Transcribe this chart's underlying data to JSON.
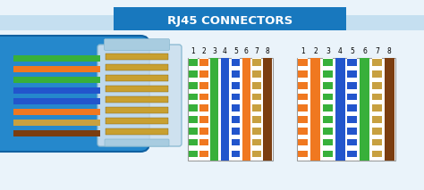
{
  "title": "RJ45 CONNECTORS",
  "title_bg": "#1878be",
  "title_color": "#ffffff",
  "bg_color": "#eaf3fa",
  "bg_stripe_color": "#c5dff0",
  "fig_width": 4.74,
  "fig_height": 2.13,
  "dpi": 100,
  "pin_labels": [
    "1",
    "2",
    "3",
    "4",
    "5",
    "6",
    "7",
    "8"
  ],
  "left_colors": [
    "#38b03a",
    "#f07820",
    "#38b03a",
    "#2255cc",
    "#2255cc",
    "#f07820",
    "#c8a040",
    "#7b3d10"
  ],
  "left_stripes": [
    true,
    true,
    false,
    false,
    true,
    false,
    true,
    false
  ],
  "right_colors": [
    "#f07820",
    "#f07820",
    "#38b03a",
    "#2255cc",
    "#2255cc",
    "#38b03a",
    "#c8a040",
    "#7b3d10"
  ],
  "right_stripes": [
    true,
    false,
    true,
    false,
    true,
    false,
    true,
    false
  ],
  "cable_blue": "#2588cc",
  "cable_dark": "#1060a0",
  "plug_fill": "#cce0ef",
  "plug_edge": "#88b8d0",
  "gold_color": "#c8a030",
  "wire_colors": [
    "#38b03a",
    "#f07820",
    "#38b03a",
    "#2255cc",
    "#2255cc",
    "#f07820",
    "#c8a040",
    "#7b3d10"
  ]
}
